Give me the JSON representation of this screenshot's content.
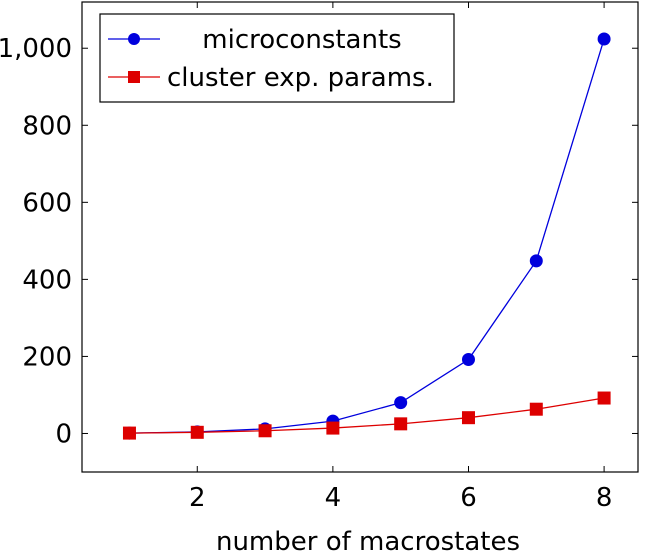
{
  "chart_data": {
    "type": "line",
    "xlabel": "number of macrostates",
    "ylabel": "",
    "xlim": [
      0.3,
      8.5
    ],
    "ylim": [
      -100,
      1120
    ],
    "x_ticks": [
      {
        "value": 2,
        "label": "2"
      },
      {
        "value": 4,
        "label": "4"
      },
      {
        "value": 6,
        "label": "6"
      },
      {
        "value": 8,
        "label": "8"
      }
    ],
    "y_ticks": [
      {
        "value": 0,
        "label": "0"
      },
      {
        "value": 200,
        "label": "200"
      },
      {
        "value": 400,
        "label": "400"
      },
      {
        "value": 600,
        "label": "600"
      },
      {
        "value": 800,
        "label": "800"
      },
      {
        "value": 1000,
        "label": "1,000"
      }
    ],
    "grid": false,
    "legend_position": "top-left",
    "series": [
      {
        "name": "microconstants",
        "color": "#0000dd",
        "marker": "circle",
        "x": [
          1,
          2,
          3,
          4,
          5,
          6,
          7,
          8
        ],
        "y": [
          1,
          4,
          12,
          32,
          80,
          192,
          448,
          1024
        ]
      },
      {
        "name": "cluster exp. params.",
        "color": "#dd0000",
        "marker": "square",
        "x": [
          1,
          2,
          3,
          4,
          5,
          6,
          7,
          8
        ],
        "y": [
          1,
          3,
          7,
          14,
          25,
          41,
          63,
          92
        ]
      }
    ]
  }
}
